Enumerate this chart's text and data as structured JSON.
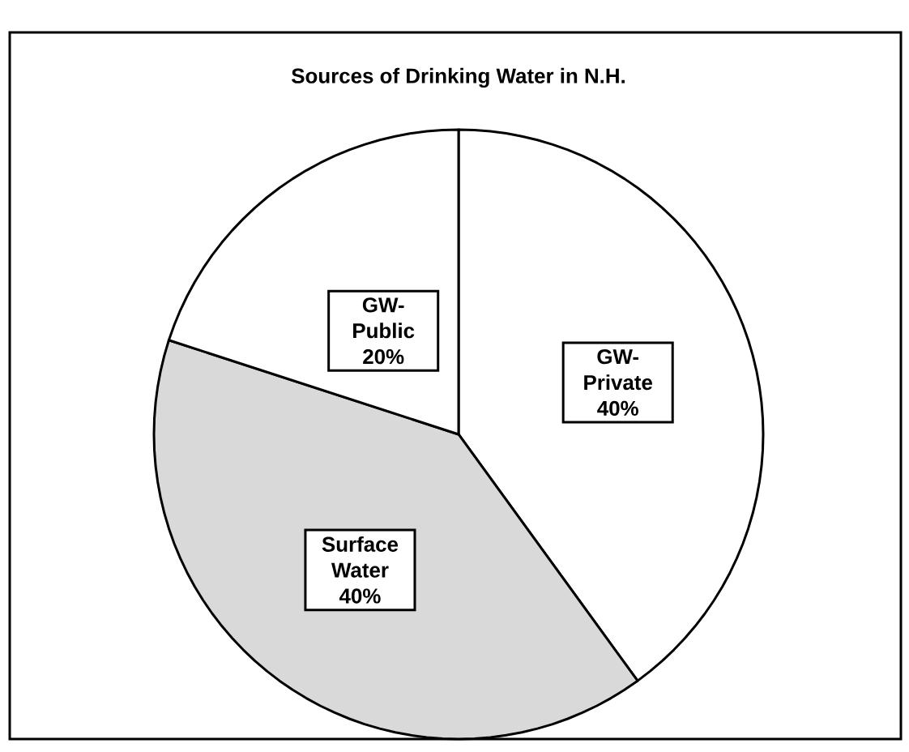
{
  "chart_data": {
    "type": "pie",
    "title": "Sources of Drinking Water in N.H.",
    "categories": [
      "GW-Private",
      "Surface Water",
      "GW-Public"
    ],
    "values": [
      40,
      40,
      20
    ],
    "value_labels": [
      "40%",
      "40%",
      "20%"
    ],
    "colors": [
      "#ffffff",
      "#d9d9d9",
      "#ffffff"
    ]
  }
}
